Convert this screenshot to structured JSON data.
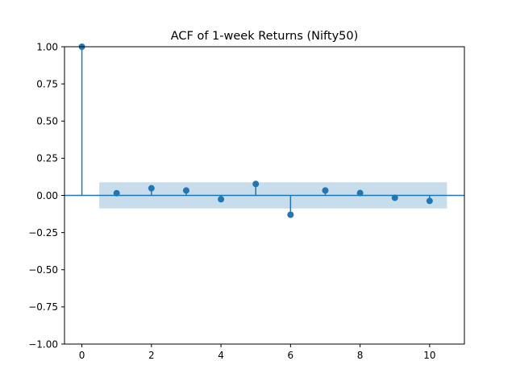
{
  "chart_data": {
    "type": "stem",
    "title": "ACF of 1-week Returns (Nifty50)",
    "xlabel": "",
    "ylabel": "",
    "xlim": [
      -0.5,
      11
    ],
    "ylim": [
      -1.0,
      1.0
    ],
    "x_ticks": [
      0,
      2,
      4,
      6,
      8,
      10
    ],
    "x_tick_labels": [
      "0",
      "2",
      "4",
      "6",
      "8",
      "10"
    ],
    "y_ticks": [
      1.0,
      0.75,
      0.5,
      0.25,
      0.0,
      -0.25,
      -0.5,
      -0.75,
      -1.0
    ],
    "y_tick_labels": [
      "1.00",
      "0.75",
      "0.50",
      "0.25",
      "0.00",
      "−0.25",
      "−0.50",
      "−0.75",
      "−1.00"
    ],
    "grid": false,
    "series": [
      {
        "lags": [
          0,
          1,
          2,
          3,
          4,
          5,
          6,
          7,
          8,
          9,
          10
        ],
        "values": [
          1.0,
          0.015,
          0.048,
          0.033,
          -0.026,
          0.077,
          -0.13,
          0.033,
          0.016,
          -0.016,
          -0.037
        ]
      }
    ],
    "confidence_band": {
      "from_lag": 0.5,
      "to_lag": 10.5,
      "upper": 0.088,
      "lower": -0.088
    },
    "colors": {
      "series": "#1f77b4",
      "band": "#1f77b4",
      "band_opacity": 0.25,
      "axes": "#000000",
      "background": "#ffffff"
    }
  }
}
